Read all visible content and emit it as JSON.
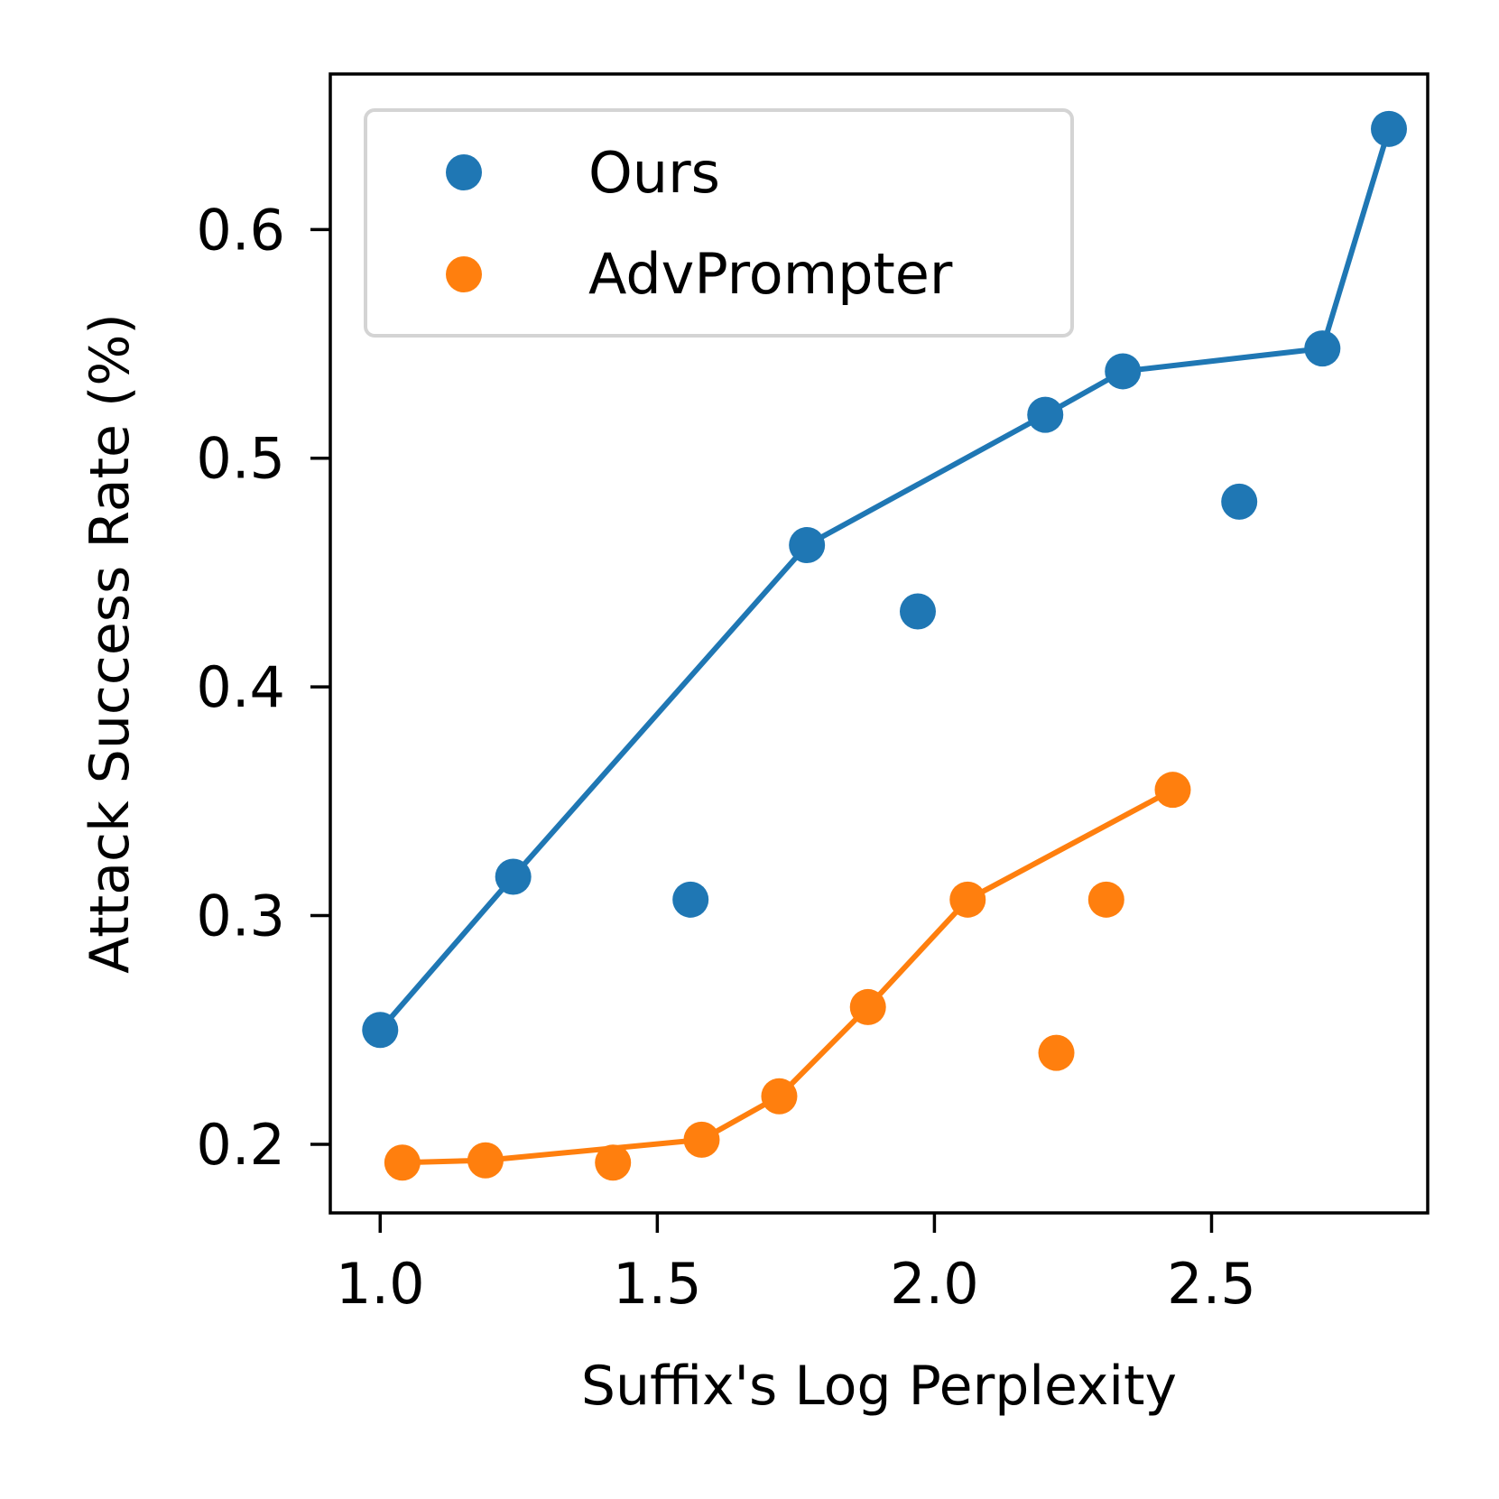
{
  "chart_data": {
    "type": "scatter",
    "xlabel": "Suffix's Log Perplexity",
    "ylabel": "Attack Success Rate (%)",
    "xlim": [
      0.91,
      2.89
    ],
    "ylim": [
      0.17,
      0.668
    ],
    "xticks": [
      1.0,
      1.5,
      2.0,
      2.5
    ],
    "xtick_labels": [
      "1.0",
      "1.5",
      "2.0",
      "2.5"
    ],
    "yticks": [
      0.2,
      0.3,
      0.4,
      0.5,
      0.6
    ],
    "ytick_labels": [
      "0.2",
      "0.3",
      "0.4",
      "0.5",
      "0.6"
    ],
    "grid": false,
    "legend_position": "top-left",
    "series": [
      {
        "name": "Ours",
        "color": "#1f77b4",
        "points": [
          {
            "x": 1.0,
            "y": 0.25
          },
          {
            "x": 1.24,
            "y": 0.317
          },
          {
            "x": 1.56,
            "y": 0.307
          },
          {
            "x": 1.77,
            "y": 0.462
          },
          {
            "x": 1.97,
            "y": 0.433
          },
          {
            "x": 2.2,
            "y": 0.519
          },
          {
            "x": 2.34,
            "y": 0.538
          },
          {
            "x": 2.55,
            "y": 0.481
          },
          {
            "x": 2.7,
            "y": 0.548
          },
          {
            "x": 2.82,
            "y": 0.644
          }
        ],
        "frontier": [
          {
            "x": 1.0,
            "y": 0.25
          },
          {
            "x": 1.24,
            "y": 0.317
          },
          {
            "x": 1.77,
            "y": 0.462
          },
          {
            "x": 2.2,
            "y": 0.519
          },
          {
            "x": 2.34,
            "y": 0.538
          },
          {
            "x": 2.7,
            "y": 0.548
          },
          {
            "x": 2.82,
            "y": 0.644
          }
        ]
      },
      {
        "name": "AdvPrompter",
        "color": "#ff7f0e",
        "points": [
          {
            "x": 1.04,
            "y": 0.192
          },
          {
            "x": 1.19,
            "y": 0.193
          },
          {
            "x": 1.42,
            "y": 0.192
          },
          {
            "x": 1.58,
            "y": 0.202
          },
          {
            "x": 1.72,
            "y": 0.221
          },
          {
            "x": 1.88,
            "y": 0.26
          },
          {
            "x": 2.06,
            "y": 0.307
          },
          {
            "x": 2.22,
            "y": 0.24
          },
          {
            "x": 2.31,
            "y": 0.307
          },
          {
            "x": 2.43,
            "y": 0.355
          }
        ],
        "frontier": [
          {
            "x": 1.04,
            "y": 0.192
          },
          {
            "x": 1.19,
            "y": 0.193
          },
          {
            "x": 1.58,
            "y": 0.202
          },
          {
            "x": 1.72,
            "y": 0.221
          },
          {
            "x": 1.88,
            "y": 0.26
          },
          {
            "x": 2.06,
            "y": 0.307
          },
          {
            "x": 2.43,
            "y": 0.355
          }
        ]
      }
    ]
  }
}
